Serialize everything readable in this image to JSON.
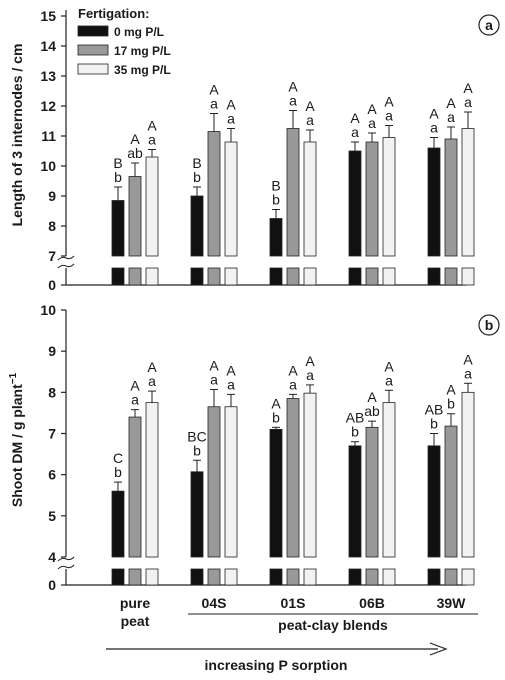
{
  "chart_data": [
    {
      "type": "bar",
      "panel_label": "a",
      "ylabel": "Length of 3 internodes / cm",
      "ylim": [
        7,
        15
      ],
      "ylim_lower_segment": [
        0,
        0
      ],
      "axis_break": true,
      "yticks": [
        7,
        8,
        9,
        10,
        11,
        12,
        13,
        14,
        15
      ],
      "yticks_lower": [
        0
      ],
      "categories": [
        "pure peat",
        "04S",
        "01S",
        "06B",
        "39W"
      ],
      "legend_title": "Fertigation:",
      "legend_position": "top-left",
      "grid": false,
      "series": [
        {
          "name": "0 mg P/L",
          "color": "#111111",
          "values": [
            8.85,
            9.0,
            8.25,
            10.5,
            10.6
          ],
          "error": [
            0.45,
            0.3,
            0.3,
            0.3,
            0.35
          ],
          "letters_upper": [
            "B",
            "B",
            "B",
            "A",
            "A"
          ],
          "letters_lower": [
            "b",
            "b",
            "b",
            "a",
            "a"
          ]
        },
        {
          "name": "17 mg P/L",
          "color": "#999999",
          "values": [
            9.65,
            11.15,
            11.25,
            10.8,
            10.9
          ],
          "error": [
            0.45,
            0.6,
            0.6,
            0.3,
            0.4
          ],
          "letters_upper": [
            "A",
            "A",
            "A",
            "A",
            "A"
          ],
          "letters_lower": [
            "ab",
            "a",
            "a",
            "a",
            "a"
          ]
        },
        {
          "name": "35 mg P/L",
          "color": "#f2f2f2",
          "values": [
            10.3,
            10.8,
            10.8,
            10.95,
            11.25
          ],
          "error": [
            0.25,
            0.45,
            0.4,
            0.4,
            0.55
          ],
          "letters_upper": [
            "A",
            "A",
            "A",
            "A",
            "A"
          ],
          "letters_lower": [
            "a",
            "a",
            "a",
            "a",
            "a"
          ]
        }
      ]
    },
    {
      "type": "bar",
      "panel_label": "b",
      "ylabel": "Shoot DM / g plant",
      "ylabel_superscript": "−1",
      "ylim": [
        4,
        10
      ],
      "ylim_lower_segment": [
        0,
        0
      ],
      "axis_break": true,
      "yticks": [
        4,
        5,
        6,
        7,
        8,
        9,
        10
      ],
      "yticks_lower": [
        0
      ],
      "categories": [
        "pure peat",
        "04S",
        "01S",
        "06B",
        "39W"
      ],
      "grid": false,
      "series": [
        {
          "name": "0 mg P/L",
          "color": "#111111",
          "values": [
            5.6,
            6.07,
            7.1,
            6.7,
            6.7
          ],
          "error": [
            0.22,
            0.28,
            0.05,
            0.1,
            0.3
          ],
          "letters_upper": [
            "C",
            "BC",
            "A",
            "AB",
            "AB"
          ],
          "letters_lower": [
            "b",
            "b",
            "b",
            "b",
            "b"
          ]
        },
        {
          "name": "17 mg P/L",
          "color": "#999999",
          "values": [
            7.4,
            7.65,
            7.85,
            7.15,
            7.18
          ],
          "error": [
            0.18,
            0.42,
            0.1,
            0.15,
            0.3
          ],
          "letters_upper": [
            "A",
            "A",
            "A",
            "A",
            "A"
          ],
          "letters_lower": [
            "a",
            "a",
            "a",
            "ab",
            "b"
          ]
        },
        {
          "name": "35 mg P/L",
          "color": "#f2f2f2",
          "values": [
            7.75,
            7.65,
            7.98,
            7.75,
            8.0
          ],
          "error": [
            0.28,
            0.3,
            0.2,
            0.3,
            0.22
          ],
          "letters_upper": [
            "A",
            "A",
            "A",
            "A",
            "A"
          ],
          "letters_lower": [
            "a",
            "a",
            "a",
            "a",
            "a"
          ]
        }
      ]
    }
  ],
  "x_axis": {
    "category_line1": [
      "pure",
      "04S",
      "01S",
      "06B",
      "39W"
    ],
    "category_line2": [
      "peat",
      "",
      "",
      "",
      ""
    ],
    "group_label": "peat-clay blends",
    "arrow_label": "increasing P sorption"
  }
}
